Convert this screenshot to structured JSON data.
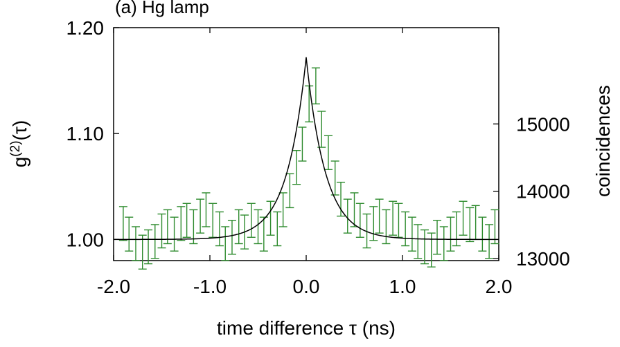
{
  "chart_data": {
    "type": "scatter",
    "title": "(a) Hg lamp",
    "xlabel": "time difference τ (ns)",
    "ylabel_left_base": "g",
    "ylabel_left_sup": "(2)",
    "ylabel_left_tail": "(τ)",
    "ylabel_right": "coincidences",
    "xlim": [
      -2.0,
      2.0
    ],
    "ylim_left": [
      0.98,
      1.2
    ],
    "ylim_right": [
      12970,
      16430
    ],
    "x_ticks": [
      -2.0,
      -1.0,
      0.0,
      1.0,
      2.0
    ],
    "x_tick_labels": [
      "-2.0",
      "-1.0",
      "0.0",
      "1.0",
      "2.0"
    ],
    "y_left_ticks": [
      1.0,
      1.1,
      1.2
    ],
    "y_left_tick_labels": [
      "1.00",
      "1.10",
      "1.20"
    ],
    "y_right_ticks": [
      13000,
      14000,
      15000
    ],
    "y_right_tick_labels": [
      "13000",
      "14000",
      "15000"
    ],
    "grid": false,
    "series": [
      {
        "kind": "errorbar",
        "color": "#2e8b2e",
        "x": [
          -1.9,
          -1.84,
          -1.77,
          -1.7,
          -1.64,
          -1.57,
          -1.5,
          -1.44,
          -1.37,
          -1.3,
          -1.24,
          -1.17,
          -1.1,
          -1.04,
          -0.97,
          -0.9,
          -0.84,
          -0.77,
          -0.7,
          -0.64,
          -0.57,
          -0.5,
          -0.44,
          -0.37,
          -0.3,
          -0.24,
          -0.17,
          -0.1,
          -0.04,
          0.03,
          0.1,
          0.16,
          0.23,
          0.3,
          0.36,
          0.43,
          0.5,
          0.56,
          0.63,
          0.7,
          0.76,
          0.83,
          0.9,
          0.96,
          1.03,
          1.1,
          1.16,
          1.23,
          1.3,
          1.36,
          1.43,
          1.5,
          1.56,
          1.63,
          1.7,
          1.76,
          1.83,
          1.9,
          1.96
        ],
        "y": [
          1.015,
          1.005,
          0.996,
          0.988,
          0.993,
          0.998,
          1.008,
          1.012,
          1.005,
          1.015,
          1.018,
          1.012,
          1.022,
          1.028,
          1.018,
          1.01,
          0.996,
          1.002,
          1.012,
          1.007,
          1.018,
          1.012,
          1.005,
          1.02,
          1.01,
          1.028,
          1.046,
          1.068,
          1.09,
          1.128,
          1.145,
          1.104,
          1.082,
          1.058,
          1.038,
          1.022,
          1.028,
          1.018,
          1.008,
          1.015,
          1.022,
          1.012,
          1.02,
          1.018,
          1.01,
          1.005,
          0.998,
          0.993,
          0.99,
          1.002,
          0.996,
          1.005,
          1.01,
          1.02,
          1.014,
          1.016,
          1.005,
          0.998,
          1.012
        ],
        "err": [
          0.016,
          0.016,
          0.016,
          0.016,
          0.016,
          0.016,
          0.016,
          0.016,
          0.016,
          0.016,
          0.016,
          0.016,
          0.016,
          0.016,
          0.016,
          0.016,
          0.016,
          0.016,
          0.016,
          0.016,
          0.016,
          0.016,
          0.016,
          0.016,
          0.016,
          0.016,
          0.016,
          0.016,
          0.016,
          0.017,
          0.017,
          0.017,
          0.016,
          0.016,
          0.016,
          0.016,
          0.016,
          0.016,
          0.016,
          0.016,
          0.016,
          0.016,
          0.016,
          0.016,
          0.016,
          0.016,
          0.016,
          0.016,
          0.016,
          0.016,
          0.016,
          0.016,
          0.016,
          0.016,
          0.016,
          0.016,
          0.016,
          0.016,
          0.016
        ]
      },
      {
        "kind": "line",
        "color": "#000000",
        "model": "1 + A*exp(-|x|/t)",
        "A": 0.172,
        "t": 0.2
      }
    ]
  }
}
